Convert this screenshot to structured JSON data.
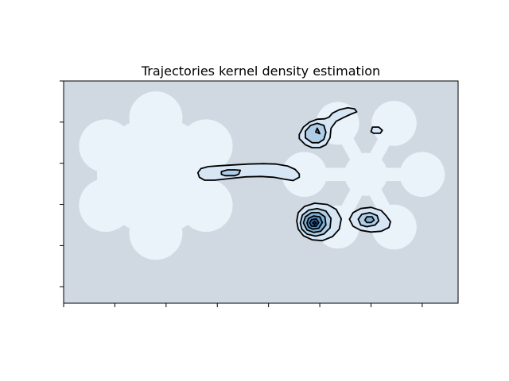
{
  "chart_data": {
    "type": "contour",
    "title": "Trajectories kernel density estimation",
    "xlabel": "",
    "ylabel": "",
    "tick_labels_shown": false,
    "grid": false,
    "legend": "none",
    "colors": {
      "background": "#d0d9e2",
      "obstacle": "#eaf2fa",
      "outline": "#000000",
      "density_levels": [
        "#d6e6f5",
        "#aecde6",
        "#7fb0d6",
        "#5391c6",
        "#2f6fae",
        "#0d3f82"
      ]
    },
    "x_ticks": [
      0,
      1,
      2,
      3,
      4,
      5,
      6,
      7
    ],
    "y_ticks": [
      0,
      1,
      2,
      3,
      4,
      5
    ],
    "xlim": [
      0,
      7.7
    ],
    "ylim": [
      -0.4,
      5.0
    ],
    "obstacles": [
      {
        "name": "left-hub",
        "cx": 1.8,
        "cy": 2.7,
        "r": 1.15
      },
      {
        "name": "left-petal-top",
        "cx": 1.8,
        "cy": 4.1,
        "r": 0.52
      },
      {
        "name": "left-petal-top-left",
        "cx": 0.82,
        "cy": 3.42,
        "r": 0.52
      },
      {
        "name": "left-petal-top-right",
        "cx": 2.78,
        "cy": 3.42,
        "r": 0.52
      },
      {
        "name": "left-petal-bottom-left",
        "cx": 0.82,
        "cy": 1.98,
        "r": 0.52
      },
      {
        "name": "left-petal-bottom-right",
        "cx": 2.78,
        "cy": 1.98,
        "r": 0.52
      },
      {
        "name": "left-petal-bottom",
        "cx": 1.8,
        "cy": 1.3,
        "r": 0.52
      },
      {
        "name": "right-hub",
        "cx": 5.9,
        "cy": 2.73,
        "r": 0.42
      },
      {
        "name": "right-petal-left",
        "cx": 4.7,
        "cy": 2.73,
        "r": 0.44
      },
      {
        "name": "right-petal-right",
        "cx": 7.0,
        "cy": 2.73,
        "r": 0.44
      },
      {
        "name": "right-petal-top-left",
        "cx": 5.35,
        "cy": 3.97,
        "r": 0.42
      },
      {
        "name": "right-petal-top-right",
        "cx": 6.45,
        "cy": 3.97,
        "r": 0.44
      },
      {
        "name": "right-petal-bottom-left",
        "cx": 5.35,
        "cy": 1.45,
        "r": 0.42
      },
      {
        "name": "right-petal-bottom-right",
        "cx": 6.45,
        "cy": 1.45,
        "r": 0.44
      }
    ],
    "spokes": [
      {
        "from": [
          4.7,
          2.73
        ],
        "to": [
          7.0,
          2.73
        ]
      },
      {
        "from": [
          5.9,
          2.73
        ],
        "to": [
          5.35,
          3.97
        ]
      },
      {
        "from": [
          5.9,
          2.73
        ],
        "to": [
          6.45,
          3.97
        ]
      },
      {
        "from": [
          5.9,
          2.73
        ],
        "to": [
          5.35,
          1.45
        ]
      },
      {
        "from": [
          5.9,
          2.73
        ],
        "to": [
          6.45,
          1.45
        ]
      }
    ],
    "density_regions": [
      {
        "name": "corridor-blob",
        "contours": [
          {
            "level": 1,
            "points": [
              [
                2.62,
                2.77
              ],
              [
                2.68,
                2.87
              ],
              [
                2.82,
                2.92
              ],
              [
                3.05,
                2.94
              ],
              [
                3.3,
                2.96
              ],
              [
                3.6,
                2.98
              ],
              [
                3.9,
                2.99
              ],
              [
                4.15,
                2.98
              ],
              [
                4.38,
                2.93
              ],
              [
                4.52,
                2.85
              ],
              [
                4.6,
                2.74
              ],
              [
                4.6,
                2.66
              ],
              [
                4.48,
                2.58
              ],
              [
                4.32,
                2.61
              ],
              [
                4.1,
                2.66
              ],
              [
                3.85,
                2.68
              ],
              [
                3.55,
                2.67
              ],
              [
                3.25,
                2.63
              ],
              [
                2.95,
                2.59
              ],
              [
                2.75,
                2.59
              ],
              [
                2.65,
                2.66
              ]
            ]
          },
          {
            "level": 2,
            "points": [
              [
                3.08,
                2.8
              ],
              [
                3.2,
                2.84
              ],
              [
                3.35,
                2.84
              ],
              [
                3.45,
                2.83
              ],
              [
                3.42,
                2.74
              ],
              [
                3.35,
                2.7
              ],
              [
                3.15,
                2.7
              ],
              [
                3.08,
                2.73
              ]
            ]
          }
        ]
      },
      {
        "name": "upper-blob",
        "contours": [
          {
            "level": 1,
            "points": [
              [
                4.6,
                3.6
              ],
              [
                4.6,
                3.7
              ],
              [
                4.68,
                3.88
              ],
              [
                4.8,
                4.0
              ],
              [
                4.95,
                4.07
              ],
              [
                5.1,
                4.08
              ],
              [
                5.18,
                4.12
              ],
              [
                5.25,
                4.22
              ],
              [
                5.38,
                4.3
              ],
              [
                5.55,
                4.35
              ],
              [
                5.68,
                4.32
              ],
              [
                5.72,
                4.25
              ],
              [
                5.62,
                4.2
              ],
              [
                5.48,
                4.12
              ],
              [
                5.32,
                4.02
              ],
              [
                5.22,
                3.85
              ],
              [
                5.2,
                3.62
              ],
              [
                5.12,
                3.45
              ],
              [
                5.0,
                3.38
              ],
              [
                4.85,
                3.38
              ],
              [
                4.72,
                3.45
              ]
            ]
          },
          {
            "level": 2,
            "points": [
              [
                4.72,
                3.62
              ],
              [
                4.72,
                3.78
              ],
              [
                4.82,
                3.92
              ],
              [
                4.95,
                3.97
              ],
              [
                5.08,
                3.92
              ],
              [
                5.12,
                3.75
              ],
              [
                5.08,
                3.58
              ],
              [
                4.98,
                3.5
              ],
              [
                4.85,
                3.5
              ]
            ]
          },
          {
            "level": 3,
            "points": [
              [
                4.92,
                3.76
              ],
              [
                4.95,
                3.85
              ],
              [
                5.0,
                3.72
              ]
            ]
          }
        ]
      },
      {
        "name": "small-upper-right-blob",
        "contours": [
          {
            "level": 1,
            "points": [
              [
                6.0,
                3.77
              ],
              [
                6.03,
                3.88
              ],
              [
                6.15,
                3.88
              ],
              [
                6.22,
                3.8
              ],
              [
                6.18,
                3.73
              ],
              [
                6.05,
                3.73
              ]
            ]
          }
        ]
      },
      {
        "name": "peak-blob",
        "contours": [
          {
            "level": 1,
            "points": [
              [
                4.55,
                1.6
              ],
              [
                4.58,
                1.8
              ],
              [
                4.7,
                1.95
              ],
              [
                4.9,
                2.03
              ],
              [
                5.15,
                2.0
              ],
              [
                5.32,
                1.88
              ],
              [
                5.42,
                1.65
              ],
              [
                5.38,
                1.4
              ],
              [
                5.25,
                1.22
              ],
              [
                5.05,
                1.12
              ],
              [
                4.85,
                1.14
              ],
              [
                4.68,
                1.24
              ],
              [
                4.58,
                1.4
              ]
            ]
          },
          {
            "level": 2,
            "points": [
              [
                4.62,
                1.55
              ],
              [
                4.66,
                1.74
              ],
              [
                4.78,
                1.86
              ],
              [
                4.95,
                1.9
              ],
              [
                5.12,
                1.84
              ],
              [
                5.22,
                1.66
              ],
              [
                5.2,
                1.43
              ],
              [
                5.08,
                1.28
              ],
              [
                4.92,
                1.23
              ],
              [
                4.75,
                1.28
              ],
              [
                4.65,
                1.4
              ]
            ]
          },
          {
            "level": 3,
            "points": [
              [
                4.68,
                1.55
              ],
              [
                4.72,
                1.7
              ],
              [
                4.84,
                1.8
              ],
              [
                4.98,
                1.8
              ],
              [
                5.1,
                1.7
              ],
              [
                5.12,
                1.5
              ],
              [
                5.02,
                1.35
              ],
              [
                4.88,
                1.32
              ],
              [
                4.75,
                1.38
              ]
            ]
          },
          {
            "level": 4,
            "points": [
              [
                4.75,
                1.55
              ],
              [
                4.78,
                1.66
              ],
              [
                4.88,
                1.72
              ],
              [
                5.0,
                1.7
              ],
              [
                5.05,
                1.56
              ],
              [
                4.98,
                1.42
              ],
              [
                4.86,
                1.4
              ],
              [
                4.78,
                1.45
              ]
            ]
          },
          {
            "level": 5,
            "points": [
              [
                4.8,
                1.55
              ],
              [
                4.84,
                1.63
              ],
              [
                4.93,
                1.65
              ],
              [
                4.98,
                1.56
              ],
              [
                4.93,
                1.47
              ],
              [
                4.84,
                1.47
              ]
            ]
          },
          {
            "level": 6,
            "points": [
              [
                4.86,
                1.55
              ],
              [
                4.9,
                1.59
              ],
              [
                4.93,
                1.55
              ],
              [
                4.9,
                1.51
              ]
            ]
          }
        ]
      },
      {
        "name": "right-blob",
        "contours": [
          {
            "level": 1,
            "points": [
              [
                5.58,
                1.64
              ],
              [
                5.65,
                1.8
              ],
              [
                5.8,
                1.9
              ],
              [
                6.0,
                1.93
              ],
              [
                6.2,
                1.85
              ],
              [
                6.3,
                1.72
              ],
              [
                6.38,
                1.58
              ],
              [
                6.35,
                1.44
              ],
              [
                6.2,
                1.35
              ],
              [
                6.0,
                1.33
              ],
              [
                5.8,
                1.37
              ],
              [
                5.65,
                1.47
              ]
            ]
          },
          {
            "level": 2,
            "points": [
              [
                5.75,
                1.64
              ],
              [
                5.82,
                1.76
              ],
              [
                5.98,
                1.8
              ],
              [
                6.12,
                1.73
              ],
              [
                6.15,
                1.6
              ],
              [
                6.08,
                1.5
              ],
              [
                5.92,
                1.46
              ],
              [
                5.8,
                1.5
              ]
            ]
          },
          {
            "level": 3,
            "points": [
              [
                5.88,
                1.62
              ],
              [
                5.92,
                1.7
              ],
              [
                6.02,
                1.7
              ],
              [
                6.06,
                1.62
              ],
              [
                6.0,
                1.56
              ],
              [
                5.92,
                1.56
              ]
            ]
          }
        ]
      }
    ]
  }
}
